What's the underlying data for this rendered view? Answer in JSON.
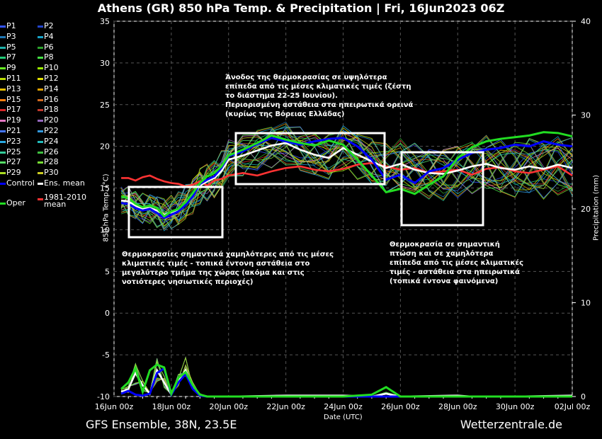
{
  "title": "Athens  (GR)  850 hPa Temp. & Precipitation | Fri, 16Jun2023 06Z",
  "footer": {
    "left": "GFS Ensemble, 38N, 23.5E",
    "right": "Wetterzentrale.de"
  },
  "legend": [
    {
      "label": "P1",
      "color": "#3355ff"
    },
    {
      "label": "P2",
      "color": "#2244cc"
    },
    {
      "label": "P3",
      "color": "#1f77b4"
    },
    {
      "label": "P4",
      "color": "#17a2c8"
    },
    {
      "label": "P5",
      "color": "#20b2aa"
    },
    {
      "label": "P6",
      "color": "#2ca02c"
    },
    {
      "label": "P7",
      "color": "#22cc77"
    },
    {
      "label": "P8",
      "color": "#44dd44"
    },
    {
      "label": "P9",
      "color": "#66ee22"
    },
    {
      "label": "P10",
      "color": "#99ee00"
    },
    {
      "label": "P11",
      "color": "#bbdd00"
    },
    {
      "label": "P12",
      "color": "#dddd00"
    },
    {
      "label": "P13",
      "color": "#e8c000"
    },
    {
      "label": "P14",
      "color": "#e0a000"
    },
    {
      "label": "P15",
      "color": "#ff7f0e"
    },
    {
      "label": "P16",
      "color": "#d2691e"
    },
    {
      "label": "P17",
      "color": "#d62728"
    },
    {
      "label": "P18",
      "color": "#c0392b"
    },
    {
      "label": "P19",
      "color": "#e377c2"
    },
    {
      "label": "P20",
      "color": "#9467bd"
    },
    {
      "label": "P21",
      "color": "#4477ff"
    },
    {
      "label": "P22",
      "color": "#3399dd"
    },
    {
      "label": "P23",
      "color": "#2aa8e0"
    },
    {
      "label": "P24",
      "color": "#22bbbb"
    },
    {
      "label": "P25",
      "color": "#33cc99"
    },
    {
      "label": "P26",
      "color": "#3fbf3f"
    },
    {
      "label": "P27",
      "color": "#55dd66"
    },
    {
      "label": "P28",
      "color": "#77dd33"
    },
    {
      "label": "P29",
      "color": "#aadd22"
    },
    {
      "label": "P30",
      "color": "#cccc22"
    },
    {
      "label": "Control",
      "color": "#0000ff"
    },
    {
      "label": "Ens. mean",
      "color": "#ffffff"
    },
    {
      "label": "Oper",
      "color": "#22dd22"
    },
    {
      "label": "1981-2010 mean",
      "color": "#ff3333"
    }
  ],
  "annotations": [
    {
      "id": "a1",
      "lines": [
        "Άνοδος της θερμοκρασίας σε υψηλότερα",
        "επίπεδα από τις μέσες κλιματικές τιμές (ζέστη",
        "το διάστημα 22-25 Ιουνίου).",
        "Περιορισμένη αστάθεια στα ηπειρωτικά ορεινά",
        "(κυρίως της Βόρειας Ελλάδας)"
      ]
    },
    {
      "id": "a2",
      "lines": [
        "Θερμοκρασίες σημαντικά χαμηλότερες από τις μέσες",
        "κλιματικές τιμές - τοπικά έντονη αστάθεια στο",
        "μεγαλύτερο τμήμα της χώρας (ακόμα και στις",
        "νοτιότερες νησιωτικές περιοχές)"
      ]
    },
    {
      "id": "a3",
      "lines": [
        "Θερμοκρασία σε σημαντική",
        "πτώση και σε χαμηλότερα",
        "επίπεδα από τις μέσες κλιματικές",
        "τιμές - αστάθεια στα ηπειρωτικά",
        "(τοπικά έντονα φαινόμενα)"
      ]
    }
  ],
  "chart_data": {
    "type": "line",
    "xlabel": "Date (UTC)",
    "ylabel": "850 hPa Temp. (°C)",
    "y2label": "Precipitation (mm)",
    "xlim_days": [
      0,
      16
    ],
    "ylim": [
      -10,
      35
    ],
    "y2lim": [
      0,
      40
    ],
    "x_ticks": [
      "16Jun 00z",
      "18Jun 00z",
      "20Jun 00z",
      "22Jun 00z",
      "24Jun 00z",
      "26Jun 00z",
      "28Jun 00z",
      "30Jun 00z",
      "02Jul 00z"
    ],
    "y_ticks": [
      -10,
      -5,
      0,
      5,
      10,
      15,
      20,
      25,
      30,
      35
    ],
    "y2_ticks": [
      0,
      10,
      20,
      30,
      40
    ],
    "grid": true,
    "temp_days": [
      0.25,
      0.5,
      0.75,
      1,
      1.25,
      1.5,
      1.75,
      2,
      2.25,
      2.5,
      2.75,
      3,
      3.25,
      3.5,
      3.75,
      4,
      4.5,
      5,
      5.5,
      6,
      6.5,
      7,
      7.5,
      8,
      8.5,
      9,
      9.5,
      10,
      10.5,
      11,
      11.5,
      12,
      12.5,
      13,
      13.5,
      14,
      14.5,
      15,
      15.5,
      16
    ],
    "series": [
      {
        "name": "1981-2010 mean",
        "values": [
          16.2,
          16.2,
          15.9,
          16.3,
          16.5,
          16.1,
          15.8,
          15.6,
          15.5,
          15.2,
          15.4,
          15.8,
          15.3,
          15.9,
          16.1,
          16.5,
          16.8,
          16.5,
          17.0,
          17.4,
          17.6,
          17.2,
          17.0,
          17.3,
          17.8,
          18.0,
          17.6,
          17.2,
          17.4,
          16.8,
          17.0,
          17.2,
          16.6,
          17.3,
          17.5,
          17.0,
          16.8,
          17.2,
          17.6,
          16.5
        ]
      },
      {
        "name": "Ens. mean",
        "values": [
          13.5,
          13.4,
          12.9,
          12.5,
          12.6,
          12.3,
          11.8,
          12.1,
          12.4,
          13.2,
          14.1,
          15.3,
          15.8,
          16.2,
          17.0,
          18.4,
          18.9,
          19.5,
          20.1,
          20.4,
          19.6,
          19.0,
          18.6,
          19.8,
          19.0,
          18.2,
          17.4,
          17.9,
          17.2,
          16.8,
          16.7,
          17.1,
          17.6,
          17.9,
          17.4,
          17.2,
          17.6,
          17.3,
          17.8,
          17.4
        ]
      },
      {
        "name": "Control",
        "values": [
          13.2,
          13.1,
          12.6,
          12.3,
          12.5,
          12.0,
          11.4,
          11.8,
          12.2,
          13.0,
          14.0,
          15.5,
          16.0,
          16.4,
          17.4,
          18.8,
          19.4,
          20.3,
          21.0,
          20.6,
          20.2,
          20.6,
          20.9,
          21.0,
          20.0,
          18.4,
          16.0,
          16.6,
          15.6,
          17.0,
          17.4,
          18.4,
          19.2,
          19.6,
          19.8,
          20.2,
          20.0,
          20.6,
          20.2,
          20.0
        ]
      },
      {
        "name": "Oper",
        "values": [
          14.0,
          13.8,
          13.1,
          12.7,
          12.9,
          12.6,
          11.6,
          12.2,
          12.5,
          13.3,
          14.4,
          15.6,
          16.4,
          16.8,
          17.6,
          18.9,
          19.6,
          20.4,
          21.3,
          20.8,
          20.4,
          20.1,
          20.7,
          20.2,
          18.4,
          16.5,
          14.5,
          14.9,
          14.3,
          15.4,
          16.4,
          18.6,
          19.9,
          20.6,
          20.9,
          21.1,
          21.3,
          21.7,
          21.6,
          21.2
        ]
      }
    ],
    "precip_days": [
      0.25,
      0.5,
      0.75,
      1,
      1.25,
      1.5,
      1.75,
      2,
      2.25,
      2.5,
      2.75,
      3,
      3.25,
      4,
      6,
      8,
      9,
      9.5,
      10,
      12,
      12.5,
      14,
      16
    ],
    "precip_series": [
      {
        "name": "Ens. mean",
        "values": [
          0.5,
          0.8,
          2.5,
          1.2,
          0.3,
          2.8,
          1.5,
          0.2,
          1.6,
          2.8,
          1.0,
          0.2,
          0,
          0,
          0.1,
          0.1,
          0,
          0.3,
          0,
          0.1,
          0,
          0,
          0.1
        ]
      },
      {
        "name": "Control",
        "values": [
          0.3,
          0.6,
          0.2,
          0.1,
          0.3,
          2.5,
          3.0,
          0.2,
          1.5,
          2.4,
          0.8,
          0.1,
          0,
          0,
          0,
          0,
          0,
          0,
          0,
          0,
          0,
          0,
          0
        ]
      },
      {
        "name": "Oper",
        "values": [
          0.8,
          1.5,
          3.0,
          0.5,
          2.8,
          3.4,
          3.1,
          0.3,
          2.0,
          2.6,
          1.2,
          0.2,
          0,
          0,
          0,
          0,
          0.2,
          1.0,
          0,
          0,
          0,
          0,
          0
        ]
      }
    ]
  }
}
